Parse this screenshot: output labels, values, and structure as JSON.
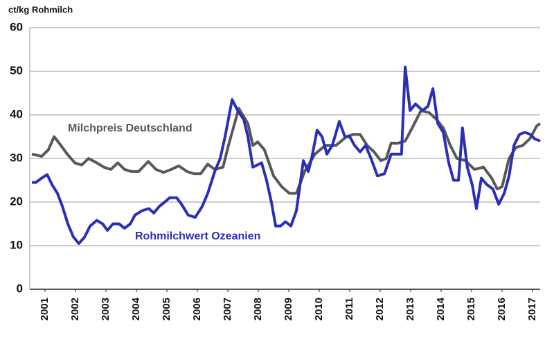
{
  "chart_data": {
    "type": "line",
    "title": "ct/kg Rohmilch",
    "annotations": [
      "Milchpreis Deutschland",
      "Rohmilchwert Ozeanien"
    ],
    "xlim": [
      2001,
      2017.75
    ],
    "xticks": [
      {
        "value": 2001.5,
        "label": "2001"
      },
      {
        "value": 2002.5,
        "label": "2002"
      },
      {
        "value": 2003.5,
        "label": "2003"
      },
      {
        "value": 2004.5,
        "label": "2004"
      },
      {
        "value": 2005.5,
        "label": "2005"
      },
      {
        "value": 2006.5,
        "label": "2006"
      },
      {
        "value": 2007.5,
        "label": "2007"
      },
      {
        "value": 2008.5,
        "label": "2008"
      },
      {
        "value": 2009.5,
        "label": "2009"
      },
      {
        "value": 2010.5,
        "label": "2010"
      },
      {
        "value": 2011.5,
        "label": "2011"
      },
      {
        "value": 2012.5,
        "label": "2012"
      },
      {
        "value": 2013.5,
        "label": "2013"
      },
      {
        "value": 2014.5,
        "label": "2014"
      },
      {
        "value": 2015.5,
        "label": "2015"
      },
      {
        "value": 2016.5,
        "label": "2016"
      },
      {
        "value": 2017.5,
        "label": "2017"
      }
    ],
    "ylim": [
      0,
      60
    ],
    "yticks": [
      0,
      10,
      20,
      30,
      40,
      50,
      60
    ],
    "grid": true,
    "series": [
      {
        "name": "Milchpreis Deutschland",
        "color": "#555a58",
        "x": [
          2001.07,
          2001.39,
          2001.61,
          2001.8,
          2002.02,
          2002.23,
          2002.48,
          2002.7,
          2002.93,
          2003.2,
          2003.43,
          2003.66,
          2003.89,
          2004.11,
          2004.34,
          2004.57,
          2004.89,
          2005.14,
          2005.39,
          2005.64,
          2005.89,
          2006.16,
          2006.39,
          2006.61,
          2006.84,
          2007.07,
          2007.34,
          2007.52,
          2007.86,
          2008.16,
          2008.32,
          2008.48,
          2008.7,
          2009.0,
          2009.27,
          2009.52,
          2009.75,
          2010.02,
          2010.36,
          2010.7,
          2011.05,
          2011.39,
          2011.61,
          2011.84,
          2012.07,
          2012.3,
          2012.52,
          2012.7,
          2012.86,
          2013.09,
          2013.32,
          2013.55,
          2013.84,
          2014.11,
          2014.34,
          2014.57,
          2014.8,
          2015.02,
          2015.3,
          2015.59,
          2015.89,
          2016.16,
          2016.34,
          2016.5,
          2016.73,
          2016.95,
          2017.18,
          2017.41,
          2017.64,
          2017.75
        ],
        "values": [
          31,
          30.5,
          32,
          35,
          33,
          31,
          29,
          28.5,
          30,
          29,
          28,
          27.5,
          29,
          27.5,
          27,
          27,
          29.3,
          27.5,
          26.8,
          27.5,
          28.3,
          27,
          26.5,
          26.5,
          28.7,
          27.5,
          28,
          33,
          41.5,
          38,
          33,
          33.8,
          32,
          26,
          23.5,
          22,
          22,
          27,
          31,
          33,
          33,
          35,
          35.5,
          35.5,
          33,
          31.5,
          29.5,
          30,
          33.5,
          33.5,
          34,
          37,
          41,
          40.5,
          39,
          37,
          33,
          30,
          29.5,
          27.5,
          28,
          25.5,
          23,
          23.5,
          30,
          32.5,
          33,
          34.5,
          37.5,
          38
        ]
      },
      {
        "name": "Rohmilchwert Ozeanien",
        "color": "#2a2fb8",
        "x": [
          2001.07,
          2001.2,
          2001.39,
          2001.57,
          2001.73,
          2001.91,
          2002.07,
          2002.25,
          2002.43,
          2002.61,
          2002.8,
          2002.98,
          2003.2,
          2003.39,
          2003.55,
          2003.73,
          2003.93,
          2004.11,
          2004.3,
          2004.45,
          2004.68,
          2004.91,
          2005.07,
          2005.25,
          2005.43,
          2005.59,
          2005.82,
          2005.98,
          2006.2,
          2006.43,
          2006.66,
          2006.84,
          2007.07,
          2007.25,
          2007.41,
          2007.64,
          2007.82,
          2008.02,
          2008.16,
          2008.32,
          2008.61,
          2008.77,
          2008.93,
          2009.07,
          2009.23,
          2009.39,
          2009.57,
          2009.75,
          2009.98,
          2010.14,
          2010.25,
          2010.43,
          2010.59,
          2010.75,
          2010.93,
          2011.16,
          2011.34,
          2011.5,
          2011.66,
          2011.84,
          2012.02,
          2012.2,
          2012.41,
          2012.64,
          2012.86,
          2013.09,
          2013.2,
          2013.32,
          2013.48,
          2013.66,
          2013.89,
          2014.07,
          2014.23,
          2014.39,
          2014.57,
          2014.75,
          2014.91,
          2015.07,
          2015.2,
          2015.36,
          2015.52,
          2015.66,
          2015.82,
          2016.0,
          2016.2,
          2016.39,
          2016.57,
          2016.73,
          2016.89,
          2017.07,
          2017.25,
          2017.43,
          2017.57,
          2017.75
        ],
        "values": [
          24.5,
          24.5,
          25.5,
          26.3,
          24,
          22,
          19,
          15,
          12,
          10.5,
          12,
          14.5,
          15.8,
          15,
          13.5,
          15,
          15,
          14,
          15,
          17,
          18,
          18.5,
          17.5,
          19,
          20,
          21,
          21,
          19.5,
          17,
          16.5,
          19,
          22,
          27,
          30,
          35,
          43.5,
          41,
          39,
          35,
          28,
          29,
          25,
          20,
          14.5,
          14.5,
          15.5,
          14.5,
          18,
          29.5,
          27,
          30,
          36.5,
          35,
          31,
          33,
          38.5,
          35,
          35,
          33,
          31.5,
          33,
          30,
          26,
          26.5,
          31,
          31,
          31,
          51,
          41,
          42.5,
          41,
          42,
          46,
          38,
          36,
          29,
          25,
          25,
          37,
          28,
          24,
          18.5,
          25.5,
          24,
          23,
          19.5,
          22,
          26,
          33,
          35.5,
          36,
          35.5,
          34.5,
          34
        ]
      }
    ]
  }
}
